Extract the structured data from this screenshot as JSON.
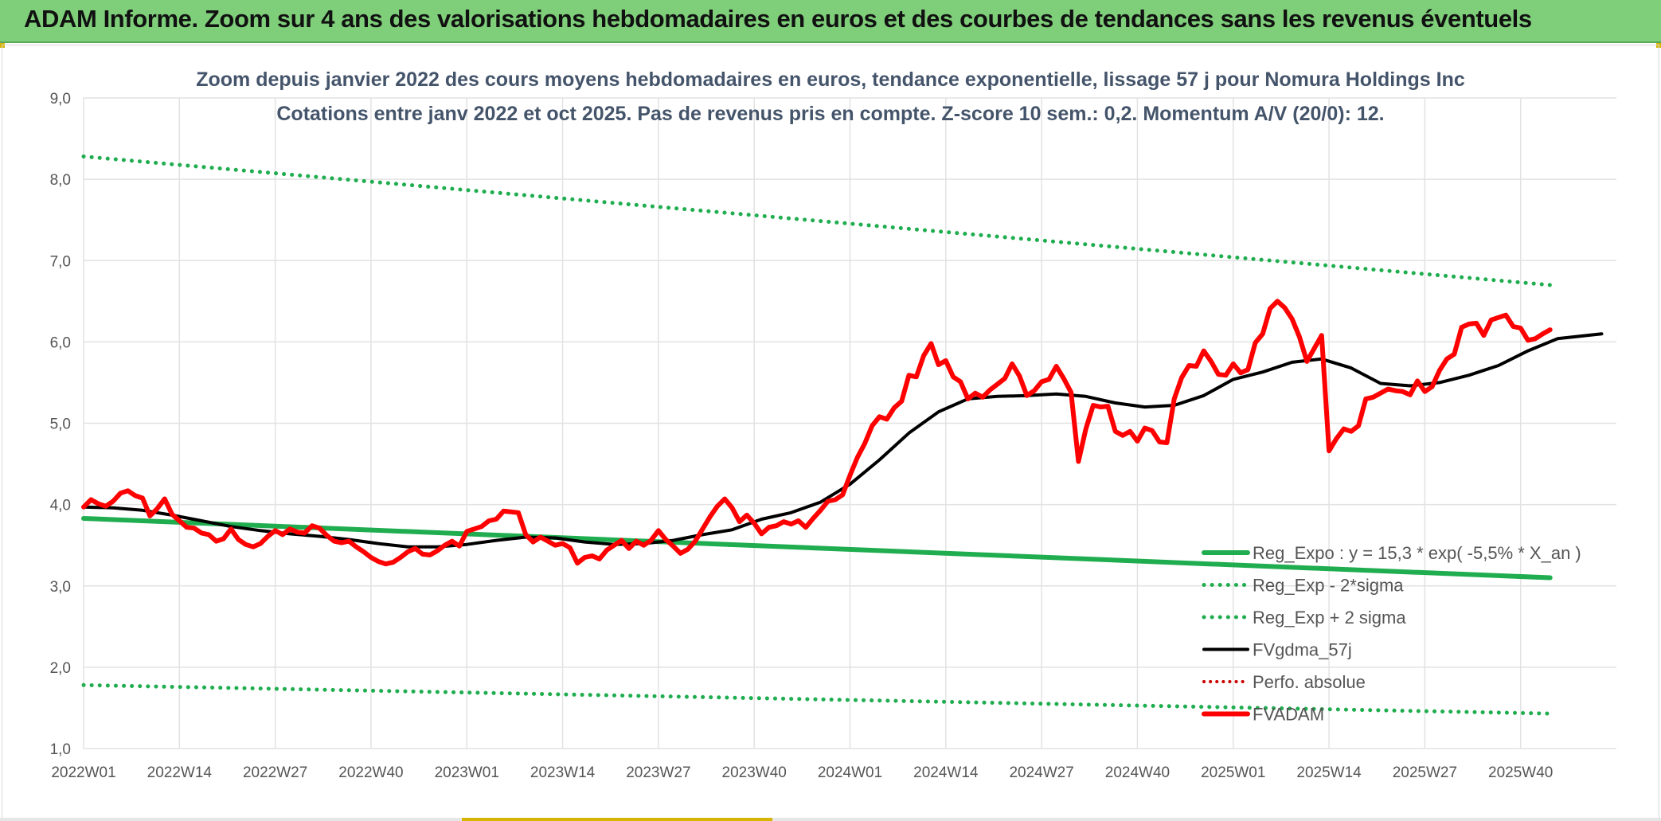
{
  "header": {
    "title": "ADAM Informe. Zoom sur 4 ans des valorisations hebdomadaires en euros et des courbes de tendances sans les revenus éventuels"
  },
  "colors": {
    "banner": "#7fcf7a",
    "trend": "#1fad4f",
    "bands": "#1fad4f",
    "smooth": "#000000",
    "price": "#ff0000",
    "perf": "#cc0000",
    "grid": "#e2e2e2",
    "accent": "#d6b400"
  },
  "chart_data": {
    "type": "line",
    "title": "Zoom depuis janvier 2022 des cours moyens hebdomadaires en euros, tendance exponentielle, lissage 57 j pour Nomura Holdings Inc",
    "subtitle": "Cotations entre janv 2022 et oct 2025. Pas de revenus pris en compte. Z-score 10 sem.: 0,2. Momentum A/V (20/0): 12.",
    "xlabel": "",
    "ylabel": "",
    "ylim": [
      1.0,
      9.0
    ],
    "y_ticks": [
      "1,0",
      "2,0",
      "3,0",
      "4,0",
      "5,0",
      "6,0",
      "7,0",
      "8,0",
      "9,0"
    ],
    "x_ticks": [
      {
        "label": "2022W01",
        "week": 0
      },
      {
        "label": "2022W14",
        "week": 13
      },
      {
        "label": "2022W27",
        "week": 26
      },
      {
        "label": "2022W40",
        "week": 39
      },
      {
        "label": "2023W01",
        "week": 52
      },
      {
        "label": "2023W14",
        "week": 65
      },
      {
        "label": "2023W27",
        "week": 78
      },
      {
        "label": "2023W40",
        "week": 91
      },
      {
        "label": "2024W01",
        "week": 104
      },
      {
        "label": "2024W14",
        "week": 117
      },
      {
        "label": "2024W27",
        "week": 130
      },
      {
        "label": "2024W40",
        "week": 143
      },
      {
        "label": "2025W01",
        "week": 156
      },
      {
        "label": "2025W14",
        "week": 169
      },
      {
        "label": "2025W27",
        "week": 182
      },
      {
        "label": "2025W40",
        "week": 195
      }
    ],
    "grid": true,
    "legend_position": "bottom-right",
    "series": [
      {
        "name": "Reg_Expo : y = 15,3 * exp( -5,5% *  X_an )",
        "style": "solid-thick",
        "points": [
          [
            0,
            3.83
          ],
          [
            199,
            3.1
          ]
        ]
      },
      {
        "name": "Reg_Exp - 2*sigma",
        "style": "dotted",
        "points": [
          [
            0,
            1.78
          ],
          [
            199,
            1.43
          ]
        ]
      },
      {
        "name": "Reg_Exp + 2 sigma",
        "style": "dotted",
        "points": [
          [
            0,
            8.28
          ],
          [
            199,
            6.7
          ]
        ]
      },
      {
        "name": "FVgdma_57j",
        "style": "solid",
        "points": [
          [
            0,
            3.97
          ],
          [
            4,
            3.96
          ],
          [
            8,
            3.93
          ],
          [
            12,
            3.87
          ],
          [
            16,
            3.8
          ],
          [
            20,
            3.73
          ],
          [
            24,
            3.68
          ],
          [
            28,
            3.64
          ],
          [
            32,
            3.61
          ],
          [
            36,
            3.57
          ],
          [
            40,
            3.52
          ],
          [
            44,
            3.48
          ],
          [
            48,
            3.48
          ],
          [
            52,
            3.51
          ],
          [
            56,
            3.56
          ],
          [
            60,
            3.6
          ],
          [
            64,
            3.59
          ],
          [
            68,
            3.54
          ],
          [
            72,
            3.51
          ],
          [
            76,
            3.52
          ],
          [
            80,
            3.56
          ],
          [
            84,
            3.63
          ],
          [
            88,
            3.69
          ],
          [
            92,
            3.82
          ],
          [
            96,
            3.9
          ],
          [
            100,
            4.03
          ],
          [
            104,
            4.25
          ],
          [
            108,
            4.55
          ],
          [
            112,
            4.88
          ],
          [
            116,
            5.14
          ],
          [
            120,
            5.3
          ],
          [
            124,
            5.33
          ],
          [
            128,
            5.34
          ],
          [
            132,
            5.36
          ],
          [
            136,
            5.33
          ],
          [
            140,
            5.25
          ],
          [
            144,
            5.2
          ],
          [
            148,
            5.22
          ],
          [
            152,
            5.34
          ],
          [
            156,
            5.54
          ],
          [
            160,
            5.63
          ],
          [
            164,
            5.75
          ],
          [
            168,
            5.79
          ],
          [
            172,
            5.68
          ],
          [
            176,
            5.49
          ],
          [
            180,
            5.46
          ],
          [
            184,
            5.5
          ],
          [
            188,
            5.59
          ],
          [
            192,
            5.71
          ],
          [
            196,
            5.89
          ],
          [
            200,
            6.04
          ],
          [
            204,
            6.08
          ],
          [
            206,
            6.1
          ]
        ]
      },
      {
        "name": "Perfo. absolue",
        "style": "dotted",
        "points": []
      },
      {
        "name": "FVADAM",
        "style": "solid-thick",
        "points": [
          [
            0,
            3.97
          ],
          [
            1,
            4.06
          ],
          [
            2,
            4.01
          ],
          [
            3,
            3.98
          ],
          [
            4,
            4.04
          ],
          [
            5,
            4.14
          ],
          [
            6,
            4.17
          ],
          [
            7,
            4.11
          ],
          [
            8,
            4.08
          ],
          [
            9,
            3.86
          ],
          [
            10,
            3.95
          ],
          [
            11,
            4.07
          ],
          [
            12,
            3.88
          ],
          [
            13,
            3.8
          ],
          [
            14,
            3.72
          ],
          [
            15,
            3.71
          ],
          [
            16,
            3.65
          ],
          [
            17,
            3.63
          ],
          [
            18,
            3.55
          ],
          [
            19,
            3.58
          ],
          [
            20,
            3.7
          ],
          [
            21,
            3.57
          ],
          [
            22,
            3.51
          ],
          [
            23,
            3.48
          ],
          [
            24,
            3.52
          ],
          [
            25,
            3.61
          ],
          [
            26,
            3.68
          ],
          [
            27,
            3.63
          ],
          [
            28,
            3.7
          ],
          [
            29,
            3.66
          ],
          [
            30,
            3.65
          ],
          [
            31,
            3.74
          ],
          [
            32,
            3.71
          ],
          [
            33,
            3.62
          ],
          [
            34,
            3.55
          ],
          [
            35,
            3.53
          ],
          [
            36,
            3.55
          ],
          [
            37,
            3.48
          ],
          [
            38,
            3.42
          ],
          [
            39,
            3.35
          ],
          [
            40,
            3.3
          ],
          [
            41,
            3.27
          ],
          [
            42,
            3.29
          ],
          [
            43,
            3.35
          ],
          [
            44,
            3.42
          ],
          [
            45,
            3.46
          ],
          [
            46,
            3.39
          ],
          [
            47,
            3.38
          ],
          [
            48,
            3.43
          ],
          [
            49,
            3.5
          ],
          [
            50,
            3.55
          ],
          [
            51,
            3.49
          ],
          [
            52,
            3.67
          ],
          [
            53,
            3.7
          ],
          [
            54,
            3.73
          ],
          [
            55,
            3.8
          ],
          [
            56,
            3.82
          ],
          [
            57,
            3.92
          ],
          [
            58,
            3.91
          ],
          [
            59,
            3.9
          ],
          [
            60,
            3.63
          ],
          [
            61,
            3.54
          ],
          [
            62,
            3.6
          ],
          [
            63,
            3.55
          ],
          [
            64,
            3.5
          ],
          [
            65,
            3.52
          ],
          [
            66,
            3.47
          ],
          [
            67,
            3.28
          ],
          [
            68,
            3.35
          ],
          [
            69,
            3.37
          ],
          [
            70,
            3.33
          ],
          [
            71,
            3.44
          ],
          [
            72,
            3.5
          ],
          [
            73,
            3.56
          ],
          [
            74,
            3.46
          ],
          [
            75,
            3.55
          ],
          [
            76,
            3.5
          ],
          [
            77,
            3.56
          ],
          [
            78,
            3.68
          ],
          [
            79,
            3.57
          ],
          [
            80,
            3.49
          ],
          [
            81,
            3.4
          ],
          [
            82,
            3.45
          ],
          [
            83,
            3.55
          ],
          [
            84,
            3.7
          ],
          [
            85,
            3.85
          ],
          [
            86,
            3.98
          ],
          [
            87,
            4.07
          ],
          [
            88,
            3.96
          ],
          [
            89,
            3.79
          ],
          [
            90,
            3.87
          ],
          [
            91,
            3.77
          ],
          [
            92,
            3.64
          ],
          [
            93,
            3.72
          ],
          [
            94,
            3.74
          ],
          [
            95,
            3.79
          ],
          [
            96,
            3.76
          ],
          [
            97,
            3.8
          ],
          [
            98,
            3.72
          ],
          [
            99,
            3.83
          ],
          [
            100,
            3.93
          ],
          [
            101,
            4.04
          ],
          [
            102,
            4.06
          ],
          [
            103,
            4.12
          ],
          [
            104,
            4.36
          ],
          [
            105,
            4.58
          ],
          [
            106,
            4.75
          ],
          [
            107,
            4.97
          ],
          [
            108,
            5.08
          ],
          [
            109,
            5.05
          ],
          [
            110,
            5.19
          ],
          [
            111,
            5.27
          ],
          [
            112,
            5.59
          ],
          [
            113,
            5.57
          ],
          [
            114,
            5.83
          ],
          [
            115,
            5.98
          ],
          [
            116,
            5.72
          ],
          [
            117,
            5.77
          ],
          [
            118,
            5.57
          ],
          [
            119,
            5.51
          ],
          [
            120,
            5.3
          ],
          [
            121,
            5.37
          ],
          [
            122,
            5.32
          ],
          [
            123,
            5.41
          ],
          [
            124,
            5.48
          ],
          [
            125,
            5.55
          ],
          [
            126,
            5.73
          ],
          [
            127,
            5.58
          ],
          [
            128,
            5.34
          ],
          [
            129,
            5.4
          ],
          [
            130,
            5.51
          ],
          [
            131,
            5.54
          ],
          [
            132,
            5.7
          ],
          [
            133,
            5.55
          ],
          [
            134,
            5.38
          ],
          [
            135,
            4.53
          ],
          [
            136,
            4.93
          ],
          [
            137,
            5.22
          ],
          [
            138,
            5.2
          ],
          [
            139,
            5.21
          ],
          [
            140,
            4.9
          ],
          [
            141,
            4.85
          ],
          [
            142,
            4.9
          ],
          [
            143,
            4.78
          ],
          [
            144,
            4.94
          ],
          [
            145,
            4.91
          ],
          [
            146,
            4.77
          ],
          [
            147,
            4.76
          ],
          [
            148,
            5.3
          ],
          [
            149,
            5.56
          ],
          [
            150,
            5.71
          ],
          [
            151,
            5.7
          ],
          [
            152,
            5.89
          ],
          [
            153,
            5.76
          ],
          [
            154,
            5.6
          ],
          [
            155,
            5.59
          ],
          [
            156,
            5.73
          ],
          [
            157,
            5.62
          ],
          [
            158,
            5.66
          ],
          [
            159,
            5.99
          ],
          [
            160,
            6.1
          ],
          [
            161,
            6.41
          ],
          [
            162,
            6.5
          ],
          [
            163,
            6.42
          ],
          [
            164,
            6.28
          ],
          [
            165,
            6.06
          ],
          [
            166,
            5.76
          ],
          [
            167,
            5.92
          ],
          [
            168,
            6.08
          ],
          [
            169,
            4.66
          ],
          [
            170,
            4.81
          ],
          [
            171,
            4.93
          ],
          [
            172,
            4.9
          ],
          [
            173,
            4.97
          ],
          [
            174,
            5.3
          ],
          [
            175,
            5.32
          ],
          [
            176,
            5.37
          ],
          [
            177,
            5.42
          ],
          [
            178,
            5.4
          ],
          [
            179,
            5.39
          ],
          [
            180,
            5.35
          ],
          [
            181,
            5.52
          ],
          [
            182,
            5.39
          ],
          [
            183,
            5.45
          ],
          [
            184,
            5.65
          ],
          [
            185,
            5.79
          ],
          [
            186,
            5.85
          ],
          [
            187,
            6.18
          ],
          [
            188,
            6.22
          ],
          [
            189,
            6.23
          ],
          [
            190,
            6.08
          ],
          [
            191,
            6.27
          ],
          [
            192,
            6.3
          ],
          [
            193,
            6.33
          ],
          [
            194,
            6.19
          ],
          [
            195,
            6.17
          ],
          [
            196,
            6.02
          ],
          [
            197,
            6.04
          ],
          [
            198,
            6.1
          ],
          [
            199,
            6.15
          ]
        ]
      }
    ]
  }
}
